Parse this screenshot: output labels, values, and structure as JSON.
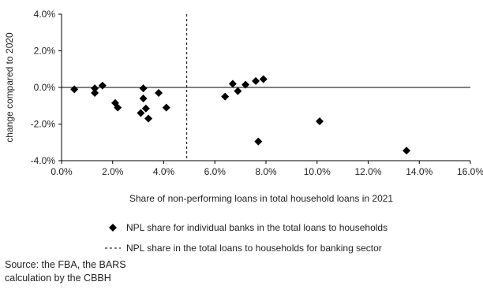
{
  "chart_data": {
    "type": "scatter",
    "xlabel": "Share of non-performing loans in total household loans in 2021",
    "ylabel": "change compared to  2020",
    "xlim": [
      0.0,
      16.0
    ],
    "ylim": [
      -4.0,
      4.0
    ],
    "x_ticks": [
      0,
      2,
      4,
      6,
      8,
      10,
      12,
      14,
      16
    ],
    "y_ticks": [
      -4,
      -2,
      0,
      2,
      4
    ],
    "x_tick_labels": [
      "0.0%",
      "2.0%",
      "4.0%",
      "6.0%",
      "8.0%",
      "10.0%",
      "12.0%",
      "14.0%",
      "16.0%"
    ],
    "y_tick_labels": [
      "-4.0%",
      "-2.0%",
      "0.0%",
      "2.0%",
      "4.0%"
    ],
    "grid": false,
    "legend_position": "bottom",
    "series": [
      {
        "name": "NPL share for individual banks in the total loans to households",
        "marker": "diamond",
        "color": "#000000",
        "x": [
          0.5,
          1.3,
          1.3,
          1.6,
          2.1,
          2.2,
          3.1,
          3.2,
          3.2,
          3.3,
          3.4,
          3.8,
          4.1,
          6.4,
          6.7,
          6.9,
          7.2,
          7.6,
          7.9,
          7.7,
          10.1,
          13.5
        ],
        "y": [
          -0.1,
          -0.05,
          -0.3,
          0.1,
          -0.85,
          -1.1,
          -1.4,
          -0.05,
          -0.6,
          -1.15,
          -1.7,
          -0.3,
          -1.1,
          -0.5,
          0.2,
          -0.2,
          0.15,
          0.35,
          0.45,
          -2.95,
          -1.85,
          -3.45
        ]
      },
      {
        "name": "NPL share in the total loans to households for banking sector",
        "type": "vertical-line",
        "style": "dashed",
        "color": "#000000",
        "x": 4.9
      }
    ]
  },
  "source": {
    "line1": "Source: the FBA, the BARS",
    "line2": "calculation by the CBBH"
  }
}
